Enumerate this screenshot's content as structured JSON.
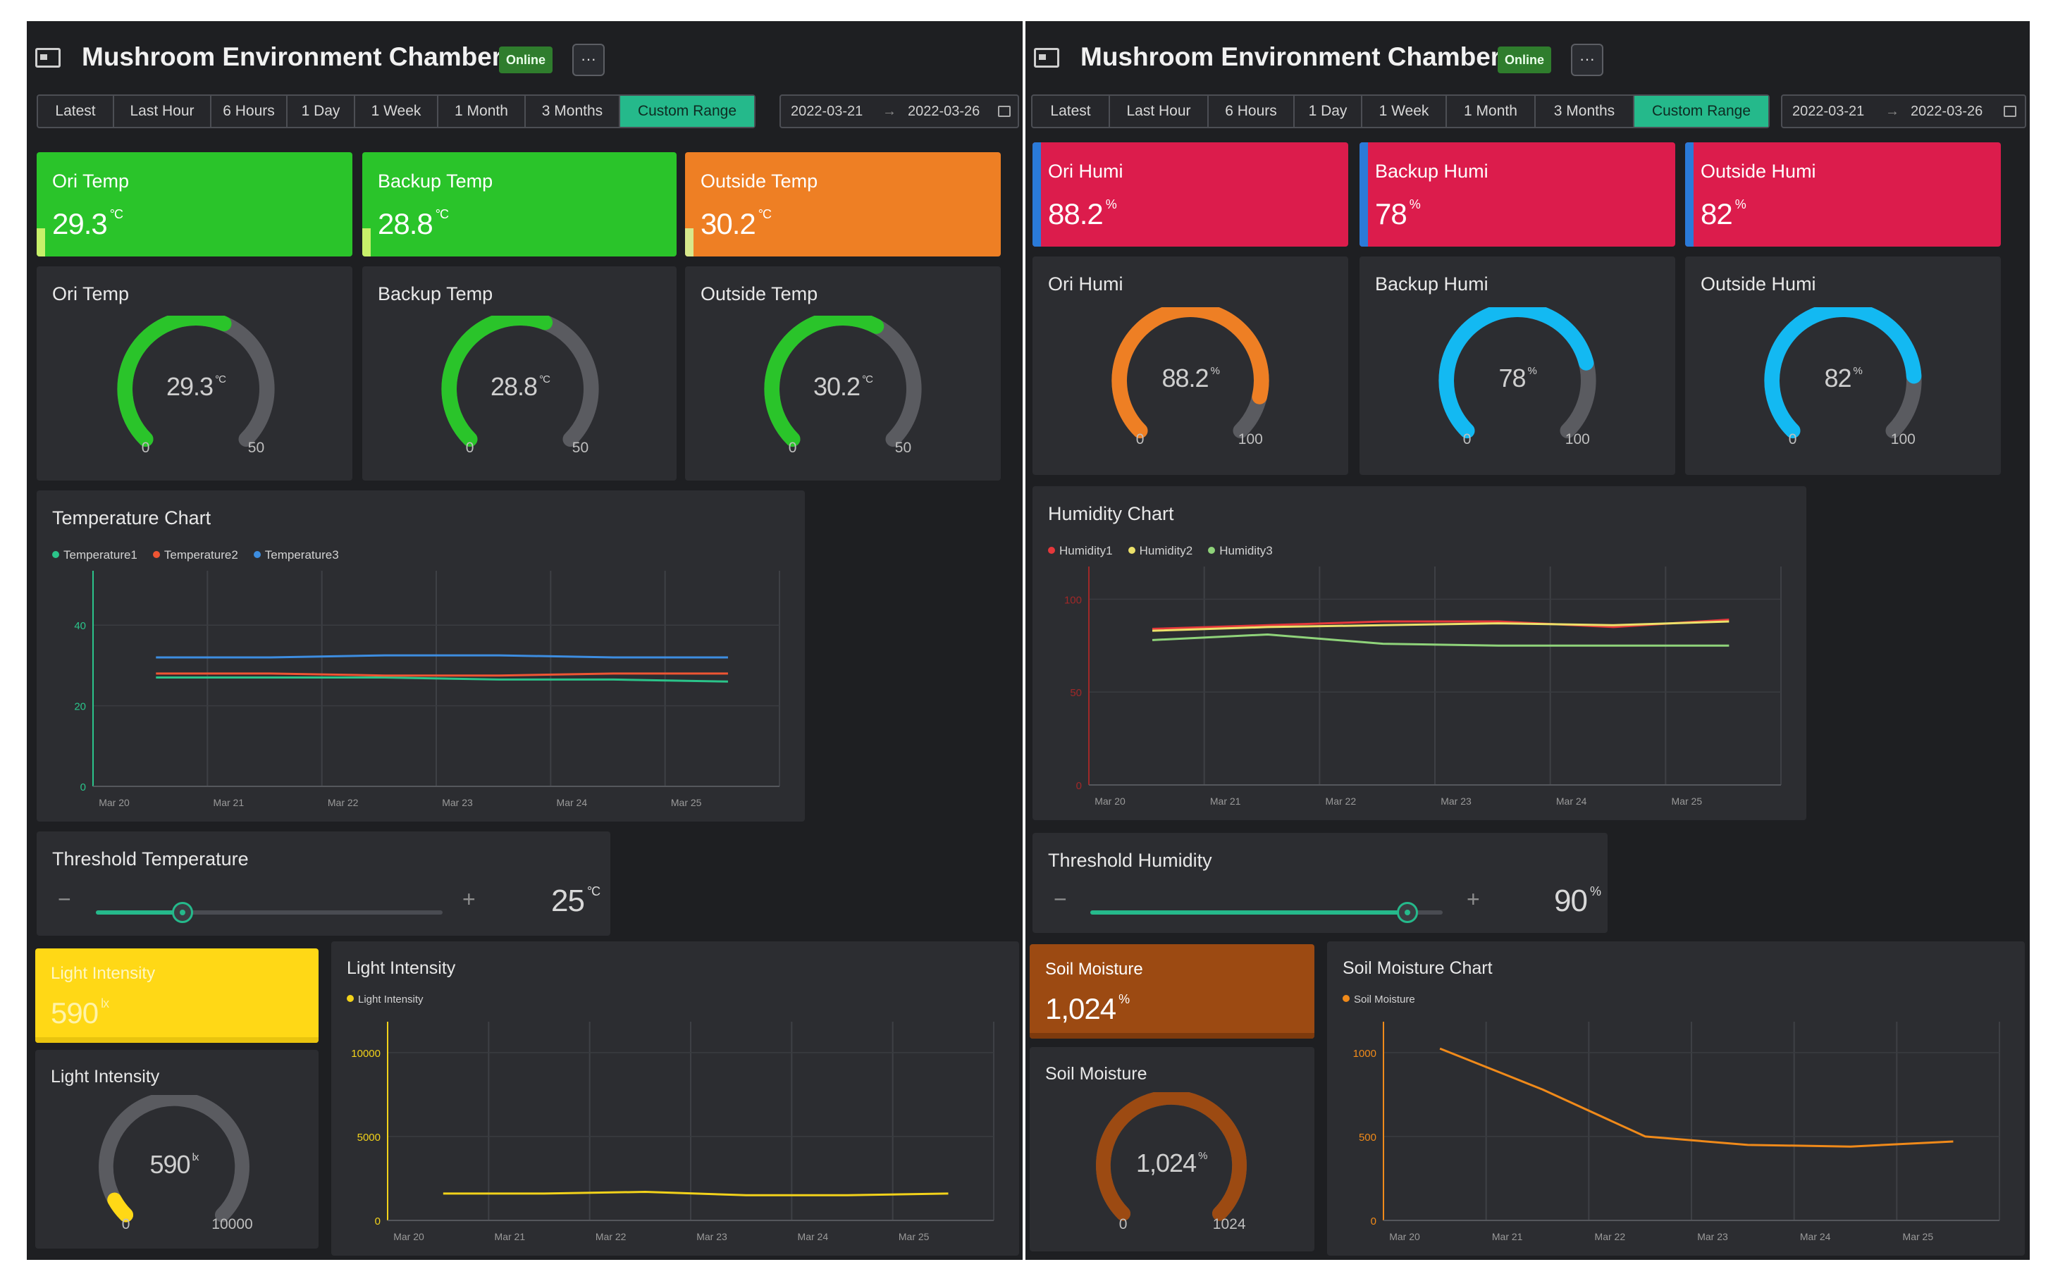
{
  "tabs": [
    "Latest",
    "Last Hour",
    "6 Hours",
    "1 Day",
    "1 Week",
    "1 Month",
    "3 Months",
    "Custom Range"
  ],
  "active_tab": "Custom Range",
  "colors": {
    "accent": "#25b98b",
    "green": "#2ac42a",
    "orange": "#ee7f24",
    "red": "#dc1c4c",
    "yellow": "#ffd816",
    "brown": "#9c4a12",
    "blue": "#13b9f2"
  },
  "left": {
    "title": "Mushroom Environment Chamber",
    "status": "Online",
    "more": "···",
    "date_from": "2022-03-21",
    "date_arrow": "→",
    "date_to": "2022-03-26",
    "stats": [
      {
        "label": "Ori Temp",
        "value": "29.3",
        "unit": "°C"
      },
      {
        "label": "Backup Temp",
        "value": "28.8",
        "unit": "°C"
      },
      {
        "label": "Outside Temp",
        "value": "30.2",
        "unit": "°C"
      }
    ],
    "gauges": [
      {
        "label": "Ori Temp",
        "value": 29.3,
        "display": "29.3",
        "unit": "°C",
        "min": "0",
        "max": "50"
      },
      {
        "label": "Backup Temp",
        "value": 28.8,
        "display": "28.8",
        "unit": "°C",
        "min": "0",
        "max": "50"
      },
      {
        "label": "Outside Temp",
        "value": 30.2,
        "display": "30.2",
        "unit": "°C",
        "min": "0",
        "max": "50"
      }
    ],
    "threshold": {
      "label": "Threshold Temperature",
      "value": "25",
      "unit": "°C",
      "fraction": 0.25,
      "minus": "−",
      "plus": "+"
    },
    "light_stat": {
      "label": "Light Intensity",
      "value": "590",
      "unit": "lx"
    },
    "light_gauge": {
      "label": "Light Intensity",
      "value": 590,
      "display": "590",
      "unit": "lx",
      "min": "0",
      "max": "10000"
    }
  },
  "right": {
    "title": "Mushroom Environment Chamber",
    "status": "Online",
    "more": "···",
    "date_from": "2022-03-21",
    "date_arrow": "→",
    "date_to": "2022-03-26",
    "stats": [
      {
        "label": "Ori Humi",
        "value": "88.2",
        "unit": "%"
      },
      {
        "label": "Backup Humi",
        "value": "78",
        "unit": "%"
      },
      {
        "label": "Outside Humi",
        "value": "82",
        "unit": "%"
      }
    ],
    "gauges": [
      {
        "label": "Ori Humi",
        "value": 88.2,
        "display": "88.2",
        "unit": "%",
        "min": "0",
        "max": "100"
      },
      {
        "label": "Backup Humi",
        "value": 78,
        "display": "78",
        "unit": "%",
        "min": "0",
        "max": "100"
      },
      {
        "label": "Outside Humi",
        "value": 82,
        "display": "82",
        "unit": "%",
        "min": "0",
        "max": "100"
      }
    ],
    "threshold": {
      "label": "Threshold Humidity",
      "value": "90",
      "unit": "%",
      "fraction": 0.9,
      "minus": "−",
      "plus": "+"
    },
    "soil_stat": {
      "label": "Soil Moisture",
      "value": "1,024",
      "unit": "%"
    },
    "soil_gauge": {
      "label": "Soil Moisture",
      "value": 1024,
      "display": "1,024",
      "unit": "%",
      "min": "0",
      "max": "1024"
    }
  },
  "chart_data": [
    {
      "type": "line",
      "title": "Temperature Chart",
      "x": [
        "Mar 20",
        "Mar 21",
        "Mar 22",
        "Mar 23",
        "Mar 24",
        "Mar 25"
      ],
      "yticks": [
        "0",
        "20",
        "40"
      ],
      "ylim": [
        0,
        50
      ],
      "series": [
        {
          "name": "Temperature1",
          "color": "#2bc48a",
          "values": [
            27,
            27,
            27,
            26.5,
            26.5,
            26
          ]
        },
        {
          "name": "Temperature2",
          "color": "#ee5533",
          "values": [
            28,
            28,
            27.5,
            27.5,
            28,
            28
          ]
        },
        {
          "name": "Temperature3",
          "color": "#3d8de0",
          "values": [
            32,
            32,
            32.5,
            32.5,
            32,
            32
          ]
        }
      ]
    },
    {
      "type": "line",
      "title": "Humidity Chart",
      "x": [
        "Mar 20",
        "Mar 21",
        "Mar 22",
        "Mar 23",
        "Mar 24",
        "Mar 25"
      ],
      "yticks": [
        "0",
        "50",
        "100"
      ],
      "ylim": [
        0,
        110
      ],
      "series": [
        {
          "name": "Humidity1",
          "color": "#e5383b",
          "values": [
            84,
            86,
            88,
            88,
            85,
            89
          ]
        },
        {
          "name": "Humidity2",
          "color": "#ece16a",
          "values": [
            83,
            85,
            86,
            87,
            86,
            88
          ]
        },
        {
          "name": "Humidity3",
          "color": "#8fd37a",
          "values": [
            78,
            81,
            76,
            75,
            75,
            75
          ]
        }
      ]
    },
    {
      "type": "line",
      "title": "Light Intensity",
      "x": [
        "Mar 20",
        "Mar 21",
        "Mar 22",
        "Mar 23",
        "Mar 24",
        "Mar 25"
      ],
      "yticks": [
        "0",
        "5000",
        "10000"
      ],
      "ylim": [
        0,
        11000
      ],
      "series": [
        {
          "name": "Light Intensity",
          "color": "#f2d21a",
          "values": [
            1600,
            1600,
            1700,
            1500,
            1500,
            1600
          ]
        }
      ]
    },
    {
      "type": "line",
      "title": "Soil Moisture Chart",
      "x": [
        "Mar 20",
        "Mar 21",
        "Mar 22",
        "Mar 23",
        "Mar 24",
        "Mar 25"
      ],
      "yticks": [
        "0",
        "500",
        "1000"
      ],
      "ylim": [
        0,
        1100
      ],
      "series": [
        {
          "name": "Soil Moisture",
          "color": "#f08a1a",
          "values": [
            1024,
            780,
            500,
            450,
            440,
            470
          ]
        }
      ]
    }
  ]
}
